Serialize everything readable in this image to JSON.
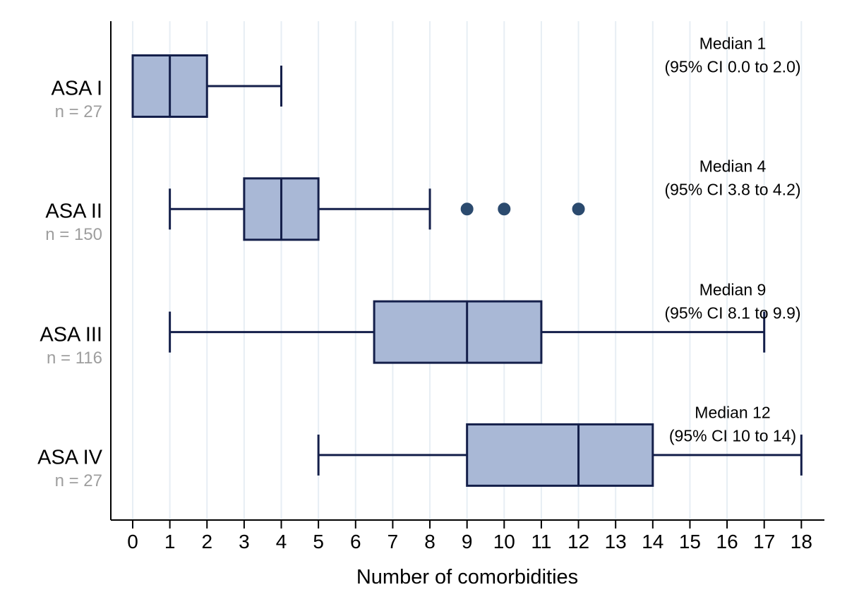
{
  "chart_data": {
    "type": "boxplot",
    "orientation": "horizontal",
    "title": "",
    "xlabel": "Number of comorbidities",
    "ylabel": "",
    "xlim": [
      0,
      18
    ],
    "xticks": [
      0,
      1,
      2,
      3,
      4,
      5,
      6,
      7,
      8,
      9,
      10,
      11,
      12,
      13,
      14,
      15,
      16,
      17,
      18
    ],
    "grid": "vertical gridlines at every integer",
    "legend": "none",
    "rows": [
      {
        "label": "ASA I",
        "n_label": "n = 27",
        "n": 27,
        "min": 0,
        "q1": 0,
        "median": 1,
        "q3": 2,
        "max": 4,
        "outliers": [],
        "annotation_line1": "Median 1",
        "annotation_line2": "(95% CI 0.0 to 2.0)"
      },
      {
        "label": "ASA II",
        "n_label": "n = 150",
        "n": 150,
        "min": 1,
        "q1": 3,
        "median": 4,
        "q3": 5,
        "max": 8,
        "outliers": [
          9,
          10,
          12
        ],
        "annotation_line1": "Median 4",
        "annotation_line2": "(95% CI 3.8 to 4.2)"
      },
      {
        "label": "ASA III",
        "n_label": "n = 116",
        "n": 116,
        "min": 1,
        "q1": 6.5,
        "median": 9,
        "q3": 11,
        "max": 17,
        "outliers": [],
        "annotation_line1": "Median 9",
        "annotation_line2": "(95% CI 8.1 to 9.9)"
      },
      {
        "label": "ASA IV",
        "n_label": "n = 27",
        "n": 27,
        "min": 5,
        "q1": 9,
        "median": 12,
        "q3": 14,
        "max": 18,
        "outliers": [],
        "annotation_line1": "Median 12",
        "annotation_line2": "(95% CI 10 to 14)"
      }
    ],
    "colors": {
      "box_fill": "#a9b8d6",
      "box_stroke": "#141f4a",
      "outlier_fill": "#2b4a6e",
      "gridline": "#e7eef4",
      "axis": "#000000",
      "n_label_text": "#9e9e9e",
      "text": "#000000",
      "background": "#ffffff"
    }
  }
}
